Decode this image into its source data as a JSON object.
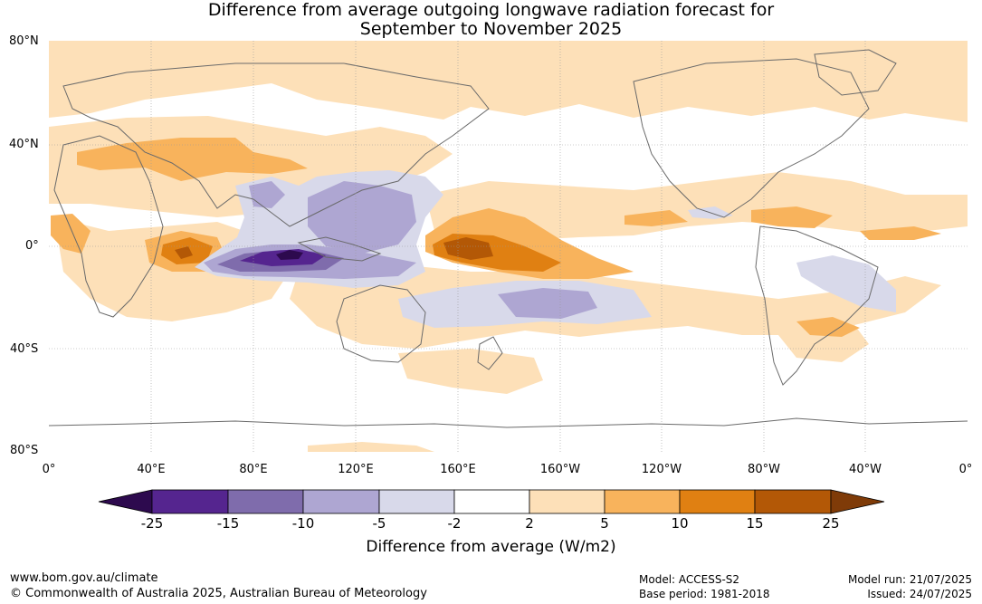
{
  "title": {
    "line1": "Difference from average outgoing longwave radiation forecast for",
    "line2": "September to November 2025"
  },
  "axes": {
    "lat_labels": [
      "80°N",
      "40°N",
      "0°",
      "40°S",
      "80°S"
    ],
    "lon_labels": [
      "0°",
      "40°E",
      "80°E",
      "120°E",
      "160°E",
      "160°W",
      "120°W",
      "80°W",
      "40°W",
      "0°"
    ]
  },
  "legend": {
    "title": "Difference from average (W/m2)",
    "ticks": [
      "-25",
      "-15",
      "-10",
      "-5",
      "-2",
      "2",
      "5",
      "10",
      "15",
      "25"
    ],
    "colors": [
      "#2d0a4e",
      "#55258f",
      "#7f6cac",
      "#aea6d2",
      "#d8d9ea",
      "#ffffff",
      "#fde0b8",
      "#f8b35c",
      "#e08012",
      "#b35806",
      "#7f3b08"
    ]
  },
  "footer": {
    "website": "www.bom.gov.au/climate",
    "copyright": "© Commonwealth of Australia 2025, Australian Bureau of Meteorology",
    "model": "Model: ACCESS-S2",
    "base_period": "Base period: 1981-2018",
    "model_run": "Model run: 21/07/2025",
    "issued": "Issued: 24/07/2025"
  }
}
